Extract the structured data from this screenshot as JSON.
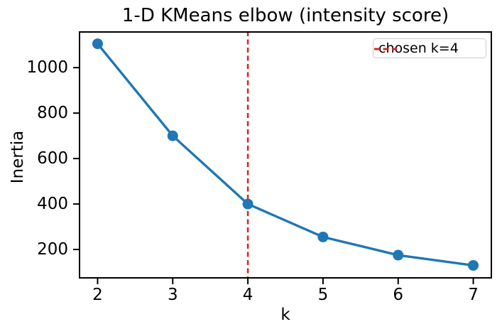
{
  "figure": {
    "title": "1-D KMeans elbow (intensity score)",
    "xlabel": "k",
    "ylabel": "Inertia",
    "legend": {
      "label": "chosen k=4"
    }
  },
  "chart_data": {
    "type": "line",
    "title": "1-D KMeans elbow (intensity score)",
    "xlabel": "k",
    "ylabel": "Inertia",
    "x": [
      2,
      3,
      4,
      5,
      6,
      7
    ],
    "series": [
      {
        "name": "inertia",
        "values": [
          1105,
          700,
          400,
          255,
          175,
          130
        ]
      }
    ],
    "annotations": [
      {
        "type": "vline",
        "x": 4,
        "label": "chosen k=4",
        "style": "dashed"
      }
    ],
    "xticks": [
      2,
      3,
      4,
      5,
      6,
      7
    ],
    "yticks": [
      200,
      400,
      600,
      800,
      1000
    ],
    "xlim": [
      1.75,
      7.25
    ],
    "ylim": [
      72,
      1160
    ],
    "grid": false,
    "legend_position": "upper right",
    "line_color": "#1f77b4",
    "marker": "o",
    "vline_color": "#d62728",
    "axis_color": "#000000"
  }
}
